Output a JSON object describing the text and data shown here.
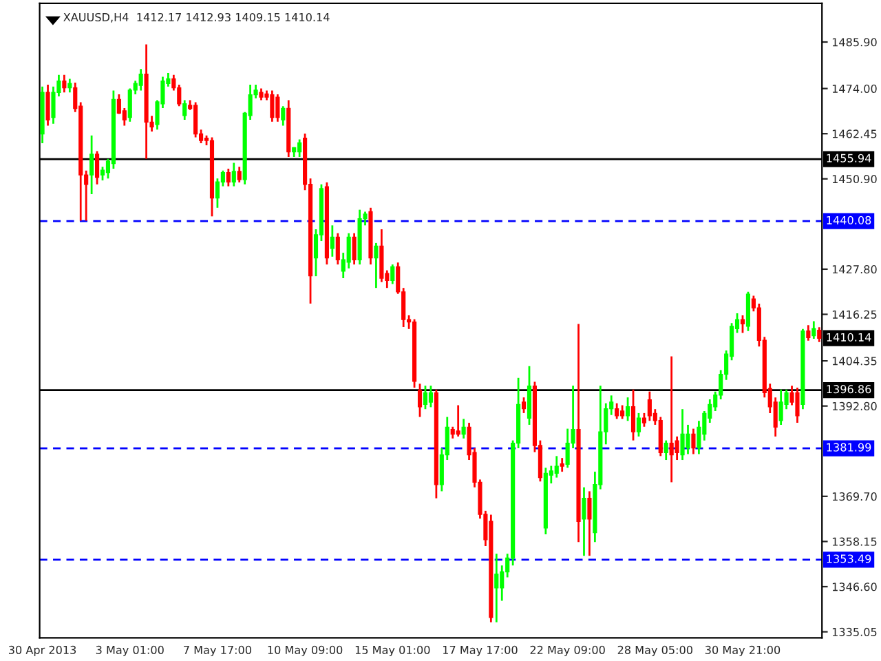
{
  "chart_data": {
    "type": "candlestick",
    "title": "XAUUSD,H4  1412.17 1412.93 1409.15 1410.14",
    "categories": [
      "30 Apr 2013",
      null,
      null,
      null,
      null,
      null,
      null,
      null,
      null,
      null,
      null,
      null,
      null,
      null,
      null,
      null,
      "3 May 01:00",
      null,
      null,
      null,
      null,
      null,
      null,
      null,
      null,
      null,
      null,
      null,
      null,
      null,
      null,
      null,
      "7 May 17:00",
      null,
      null,
      null,
      null,
      null,
      null,
      null,
      null,
      null,
      null,
      null,
      null,
      null,
      null,
      null,
      "10 May 09:00",
      null,
      null,
      null,
      null,
      null,
      null,
      null,
      null,
      null,
      null,
      null,
      null,
      null,
      null,
      null,
      "15 May 01:00",
      null,
      null,
      null,
      null,
      null,
      null,
      null,
      null,
      null,
      null,
      null,
      null,
      null,
      null,
      null,
      "17 May 17:00",
      null,
      null,
      null,
      null,
      null,
      null,
      null,
      null,
      null,
      null,
      null,
      null,
      null,
      null,
      null,
      "22 May 09:00",
      null,
      null,
      null,
      null,
      null,
      null,
      null,
      null,
      null,
      null,
      null,
      null,
      null,
      null,
      null,
      "28 May 05:00",
      null,
      null,
      null,
      null,
      null,
      null,
      null,
      null,
      null,
      null,
      null,
      null,
      null,
      null,
      null,
      "30 May 21:00",
      null,
      null,
      null,
      null,
      null,
      null,
      null,
      null,
      null,
      null,
      null,
      null,
      null,
      null
    ],
    "ohlc": [
      [
        1462.4,
        1474.5,
        1460,
        1473.0
      ],
      [
        1473.0,
        1475,
        1464.5,
        1466.0
      ],
      [
        1466.6,
        1474.5,
        1465,
        1473.0
      ],
      [
        1473.0,
        1477.5,
        1472,
        1475.9
      ],
      [
        1475.9,
        1477.5,
        1473,
        1474.2
      ],
      [
        1474.2,
        1476.5,
        1473,
        1475.3
      ],
      [
        1474.2,
        1475.5,
        1468,
        1468.9
      ],
      [
        1469.5,
        1470.5,
        1440.2,
        1451.9
      ],
      [
        1451.9,
        1453,
        1440.2,
        1449.5
      ],
      [
        1451.9,
        1462,
        1447,
        1457.2
      ],
      [
        1457.2,
        1458,
        1449.5,
        1451.3
      ],
      [
        1451.9,
        1454,
        1450.5,
        1453.1
      ],
      [
        1452.5,
        1456,
        1451,
        1455.4
      ],
      [
        1454.8,
        1473.5,
        1453.5,
        1471.2
      ],
      [
        1471.2,
        1472.5,
        1467.5,
        1467.7
      ],
      [
        1468.3,
        1469,
        1464.5,
        1466.0
      ],
      [
        1466.6,
        1474,
        1465.5,
        1473.6
      ],
      [
        1473.6,
        1476,
        1472.5,
        1475.3
      ],
      [
        1474.8,
        1479,
        1473.5,
        1477.7
      ],
      [
        1477.7,
        1485.3,
        1456.0,
        1465.4
      ],
      [
        1465.4,
        1467,
        1463,
        1464.2
      ],
      [
        1464.8,
        1471,
        1463.5,
        1470.6
      ],
      [
        1470.1,
        1477,
        1469,
        1475.9
      ],
      [
        1475.3,
        1478,
        1474.5,
        1476.5
      ],
      [
        1476.5,
        1477.5,
        1473.5,
        1474.2
      ],
      [
        1474.2,
        1475,
        1469.5,
        1470.1
      ],
      [
        1467.1,
        1471,
        1466,
        1470.1
      ],
      [
        1469.7,
        1471,
        1468.5,
        1468.9
      ],
      [
        1469.7,
        1470.5,
        1461.5,
        1462.4
      ],
      [
        1462.4,
        1463.5,
        1460,
        1460.7
      ],
      [
        1461.3,
        1462,
        1459.5,
        1460.7
      ],
      [
        1460.7,
        1461.5,
        1441.3,
        1446.0
      ],
      [
        1446.0,
        1451,
        1443.5,
        1450.1
      ],
      [
        1450.1,
        1453,
        1449,
        1452.5
      ],
      [
        1452.5,
        1453.5,
        1449,
        1450.1
      ],
      [
        1450.1,
        1455,
        1449,
        1452.8
      ],
      [
        1452.8,
        1454,
        1450,
        1450.7
      ],
      [
        1450.7,
        1468,
        1449.5,
        1467.7
      ],
      [
        1467.1,
        1475,
        1466,
        1472.4
      ],
      [
        1472.4,
        1475,
        1471.5,
        1473.6
      ],
      [
        1473.0,
        1474,
        1471,
        1471.8
      ],
      [
        1472.6,
        1473.5,
        1471,
        1471.8
      ],
      [
        1472.4,
        1473.5,
        1465.5,
        1466.6
      ],
      [
        1471.8,
        1472.5,
        1465.5,
        1466.6
      ],
      [
        1466.0,
        1469.5,
        1464.5,
        1468.9
      ],
      [
        1468.9,
        1471,
        1456.5,
        1457.8
      ],
      [
        1457.8,
        1459,
        1456.5,
        1458.9
      ],
      [
        1457.8,
        1461,
        1456.5,
        1460.1
      ],
      [
        1461.3,
        1462.5,
        1448,
        1449.5
      ],
      [
        1449.5,
        1451,
        1419.0,
        1426.1
      ],
      [
        1430.7,
        1438,
        1426,
        1436.6
      ],
      [
        1436.6,
        1449.5,
        1435,
        1448.4
      ],
      [
        1448.9,
        1450,
        1429,
        1430.7
      ],
      [
        1433.1,
        1439,
        1431,
        1436.0
      ],
      [
        1436.0,
        1437,
        1429,
        1430.2
      ],
      [
        1427.3,
        1432,
        1425.5,
        1430.2
      ],
      [
        1429.6,
        1437,
        1428,
        1436.0
      ],
      [
        1436.0,
        1437,
        1429,
        1430.2
      ],
      [
        1430.2,
        1443,
        1429,
        1440.7
      ],
      [
        1440.7,
        1442.5,
        1439,
        1441.9
      ],
      [
        1442.5,
        1443.5,
        1429,
        1430.7
      ],
      [
        1430.7,
        1434.5,
        1423,
        1433.7
      ],
      [
        1433.7,
        1438,
        1424.5,
        1425.5
      ],
      [
        1426.7,
        1427.5,
        1423,
        1424.9
      ],
      [
        1424.9,
        1429,
        1424,
        1428.4
      ],
      [
        1428.4,
        1429.5,
        1421.5,
        1422.0
      ],
      [
        1422.0,
        1423,
        1413,
        1414.9
      ],
      [
        1414.9,
        1416,
        1412.5,
        1414.3
      ],
      [
        1414.3,
        1415,
        1397.5,
        1399.1
      ],
      [
        1396.8,
        1398.5,
        1390,
        1392.6
      ],
      [
        1393.2,
        1398,
        1392,
        1396.2
      ],
      [
        1393.8,
        1398,
        1392.5,
        1396.2
      ],
      [
        1396.2,
        1397,
        1369.2,
        1372.7
      ],
      [
        1372.7,
        1382,
        1371,
        1380.3
      ],
      [
        1380.3,
        1390,
        1379,
        1387.4
      ],
      [
        1386.8,
        1387.5,
        1384.5,
        1385.6
      ],
      [
        1386.4,
        1393,
        1385,
        1385.6
      ],
      [
        1385.6,
        1389.5,
        1384.5,
        1387.4
      ],
      [
        1387.4,
        1388.5,
        1379,
        1380.3
      ],
      [
        1380.9,
        1382,
        1372,
        1373.3
      ],
      [
        1373.3,
        1374,
        1364,
        1365.1
      ],
      [
        1365.1,
        1366,
        1357,
        1358.6
      ],
      [
        1363.3,
        1365,
        1337.5,
        1338.7
      ],
      [
        1346.3,
        1355,
        1337.5,
        1349.8
      ],
      [
        1346.3,
        1352,
        1343,
        1350.4
      ],
      [
        1350.4,
        1355,
        1349,
        1353.9
      ],
      [
        1353.9,
        1384,
        1352,
        1383.3
      ],
      [
        1383.3,
        1400,
        1382,
        1393.2
      ],
      [
        1393.8,
        1395,
        1391,
        1392.1
      ],
      [
        1389.7,
        1403,
        1388,
        1397.9
      ],
      [
        1397.9,
        1399,
        1381,
        1382.7
      ],
      [
        1382.7,
        1384,
        1373.5,
        1374.5
      ],
      [
        1361.6,
        1377,
        1360,
        1375.6
      ],
      [
        1375.1,
        1377.5,
        1373,
        1376.2
      ],
      [
        1375.6,
        1380,
        1374.5,
        1377.4
      ],
      [
        1378.0,
        1379.5,
        1376,
        1377.4
      ],
      [
        1377.9,
        1387,
        1377,
        1383.3
      ],
      [
        1383.3,
        1398,
        1382,
        1386.8
      ],
      [
        1386.8,
        1413.8,
        1358,
        1363.3
      ],
      [
        1363.9,
        1372,
        1354.5,
        1369.2
      ],
      [
        1369.2,
        1371,
        1354.5,
        1363.9
      ],
      [
        1360.4,
        1376,
        1358,
        1372.7
      ],
      [
        1372.7,
        1398,
        1371.5,
        1386.2
      ],
      [
        1386.2,
        1393.5,
        1383,
        1392.1
      ],
      [
        1392.1,
        1395.5,
        1390.5,
        1393.8
      ],
      [
        1392.1,
        1393.5,
        1389.5,
        1390.3
      ],
      [
        1391.5,
        1393,
        1389.5,
        1390.3
      ],
      [
        1390.3,
        1395,
        1389,
        1392.6
      ],
      [
        1392.6,
        1397,
        1384,
        1386.2
      ],
      [
        1386.2,
        1391,
        1385,
        1389.7
      ],
      [
        1389.7,
        1391,
        1387.5,
        1388.5
      ],
      [
        1394.4,
        1396.5,
        1389,
        1390.3
      ],
      [
        1390.9,
        1392,
        1388,
        1389.1
      ],
      [
        1389.1,
        1390,
        1380,
        1380.9
      ],
      [
        1380.9,
        1384,
        1379,
        1383.3
      ],
      [
        1383.3,
        1405.5,
        1373.3,
        1380.3
      ],
      [
        1383.9,
        1385,
        1379,
        1380.9
      ],
      [
        1380.3,
        1392,
        1379,
        1385.6
      ],
      [
        1382.1,
        1388,
        1380.5,
        1385.6
      ],
      [
        1385.6,
        1387,
        1380.5,
        1382.1
      ],
      [
        1382.1,
        1389,
        1380.5,
        1387.4
      ],
      [
        1385.6,
        1391.5,
        1384,
        1390.9
      ],
      [
        1389.7,
        1394.5,
        1388.5,
        1393.2
      ],
      [
        1392.6,
        1396.5,
        1391.5,
        1395.6
      ],
      [
        1395.6,
        1402,
        1394.5,
        1400.9
      ],
      [
        1400.9,
        1407,
        1399.5,
        1406.1
      ],
      [
        1405.5,
        1414,
        1404.5,
        1413.2
      ],
      [
        1412.6,
        1416.5,
        1411.5,
        1414.9
      ],
      [
        1414.9,
        1416,
        1411.5,
        1413.8
      ],
      [
        1413.2,
        1422,
        1412,
        1421.4
      ],
      [
        1420.2,
        1421,
        1417,
        1417.9
      ],
      [
        1417.9,
        1419,
        1408,
        1409.6
      ],
      [
        1409.6,
        1410.5,
        1395,
        1396.2
      ],
      [
        1397.3,
        1398.5,
        1391,
        1392.6
      ],
      [
        1393.8,
        1395,
        1385,
        1387.4
      ],
      [
        1389.1,
        1397,
        1388,
        1393.8
      ],
      [
        1393.2,
        1397,
        1392,
        1396.2
      ],
      [
        1396.2,
        1398,
        1393,
        1393.8
      ],
      [
        1396.2,
        1397.5,
        1388.5,
        1390.3
      ],
      [
        1393.2,
        1412.5,
        1392,
        1412.0
      ],
      [
        1412.0,
        1413.5,
        1409.5,
        1410.3
      ],
      [
        1410.8,
        1414.5,
        1410,
        1412.6
      ],
      [
        1412.17,
        1412.93,
        1409.15,
        1410.14
      ]
    ],
    "ylim": [
      1333.5,
      1495.8
    ],
    "yticks": [
      1335.05,
      {
        "value": 1346.6,
        "label": "1346.60"
      },
      1358.15,
      {
        "value": 1369.7,
        "label": "1369.70"
      },
      {
        "value": 1392.8,
        "label": "1392.80"
      },
      1404.35,
      1416.25,
      {
        "value": 1427.8,
        "label": "1427.80"
      },
      {
        "value": 1450.9,
        "label": "1450.90"
      },
      1462.45,
      {
        "value": 1474,
        "label": "1474.00"
      },
      {
        "value": 1485.9,
        "label": "1485.90"
      }
    ],
    "ref_lines": [
      {
        "axis": "y",
        "value": 1455.94,
        "label": "1455.94",
        "color": "#000000",
        "line_style": "solid"
      },
      {
        "axis": "y",
        "value": 1440.08,
        "label": "1440.08",
        "color": "#0000ff",
        "line_style": "dashed"
      },
      {
        "axis": "y",
        "value": 1396.86,
        "label": "1396.86",
        "color": "#000000",
        "line_style": "solid"
      },
      {
        "axis": "y",
        "value": 1381.99,
        "label": "1381.99",
        "color": "#0000ff",
        "line_style": "dashed"
      },
      {
        "axis": "y",
        "value": 1353.49,
        "label": "1353.49",
        "color": "#0000ff",
        "line_style": "dashed"
      }
    ],
    "annotations": [
      "1410.14"
    ],
    "grid": false,
    "legend": false
  }
}
